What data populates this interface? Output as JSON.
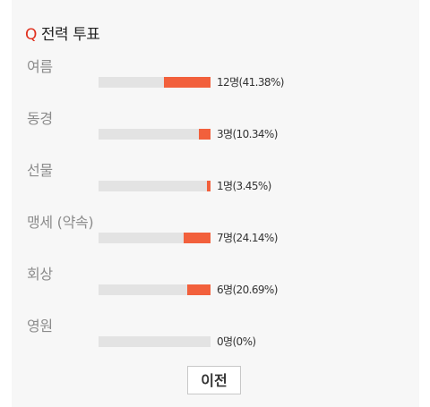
{
  "poll": {
    "q_marker": "Q",
    "title": "전력 투표",
    "options": [
      {
        "label": "여름",
        "result": "12명(41.38%)",
        "percent": 41.38
      },
      {
        "label": "동경",
        "result": "3명(10.34%)",
        "percent": 10.34
      },
      {
        "label": "선물",
        "result": "1명(3.45%)",
        "percent": 3.45
      },
      {
        "label": "맹세 (약속)",
        "result": "7명(24.14%)",
        "percent": 24.14
      },
      {
        "label": "회상",
        "result": "6명(20.69%)",
        "percent": 20.69
      },
      {
        "label": "영원",
        "result": "0명(0%)",
        "percent": 0
      }
    ],
    "prev_label": "이전"
  },
  "colors": {
    "accent": "#e0301e",
    "bar_fill": "#f2603c",
    "bar_track": "#e3e3e3",
    "panel_bg": "#f7f7f7"
  }
}
